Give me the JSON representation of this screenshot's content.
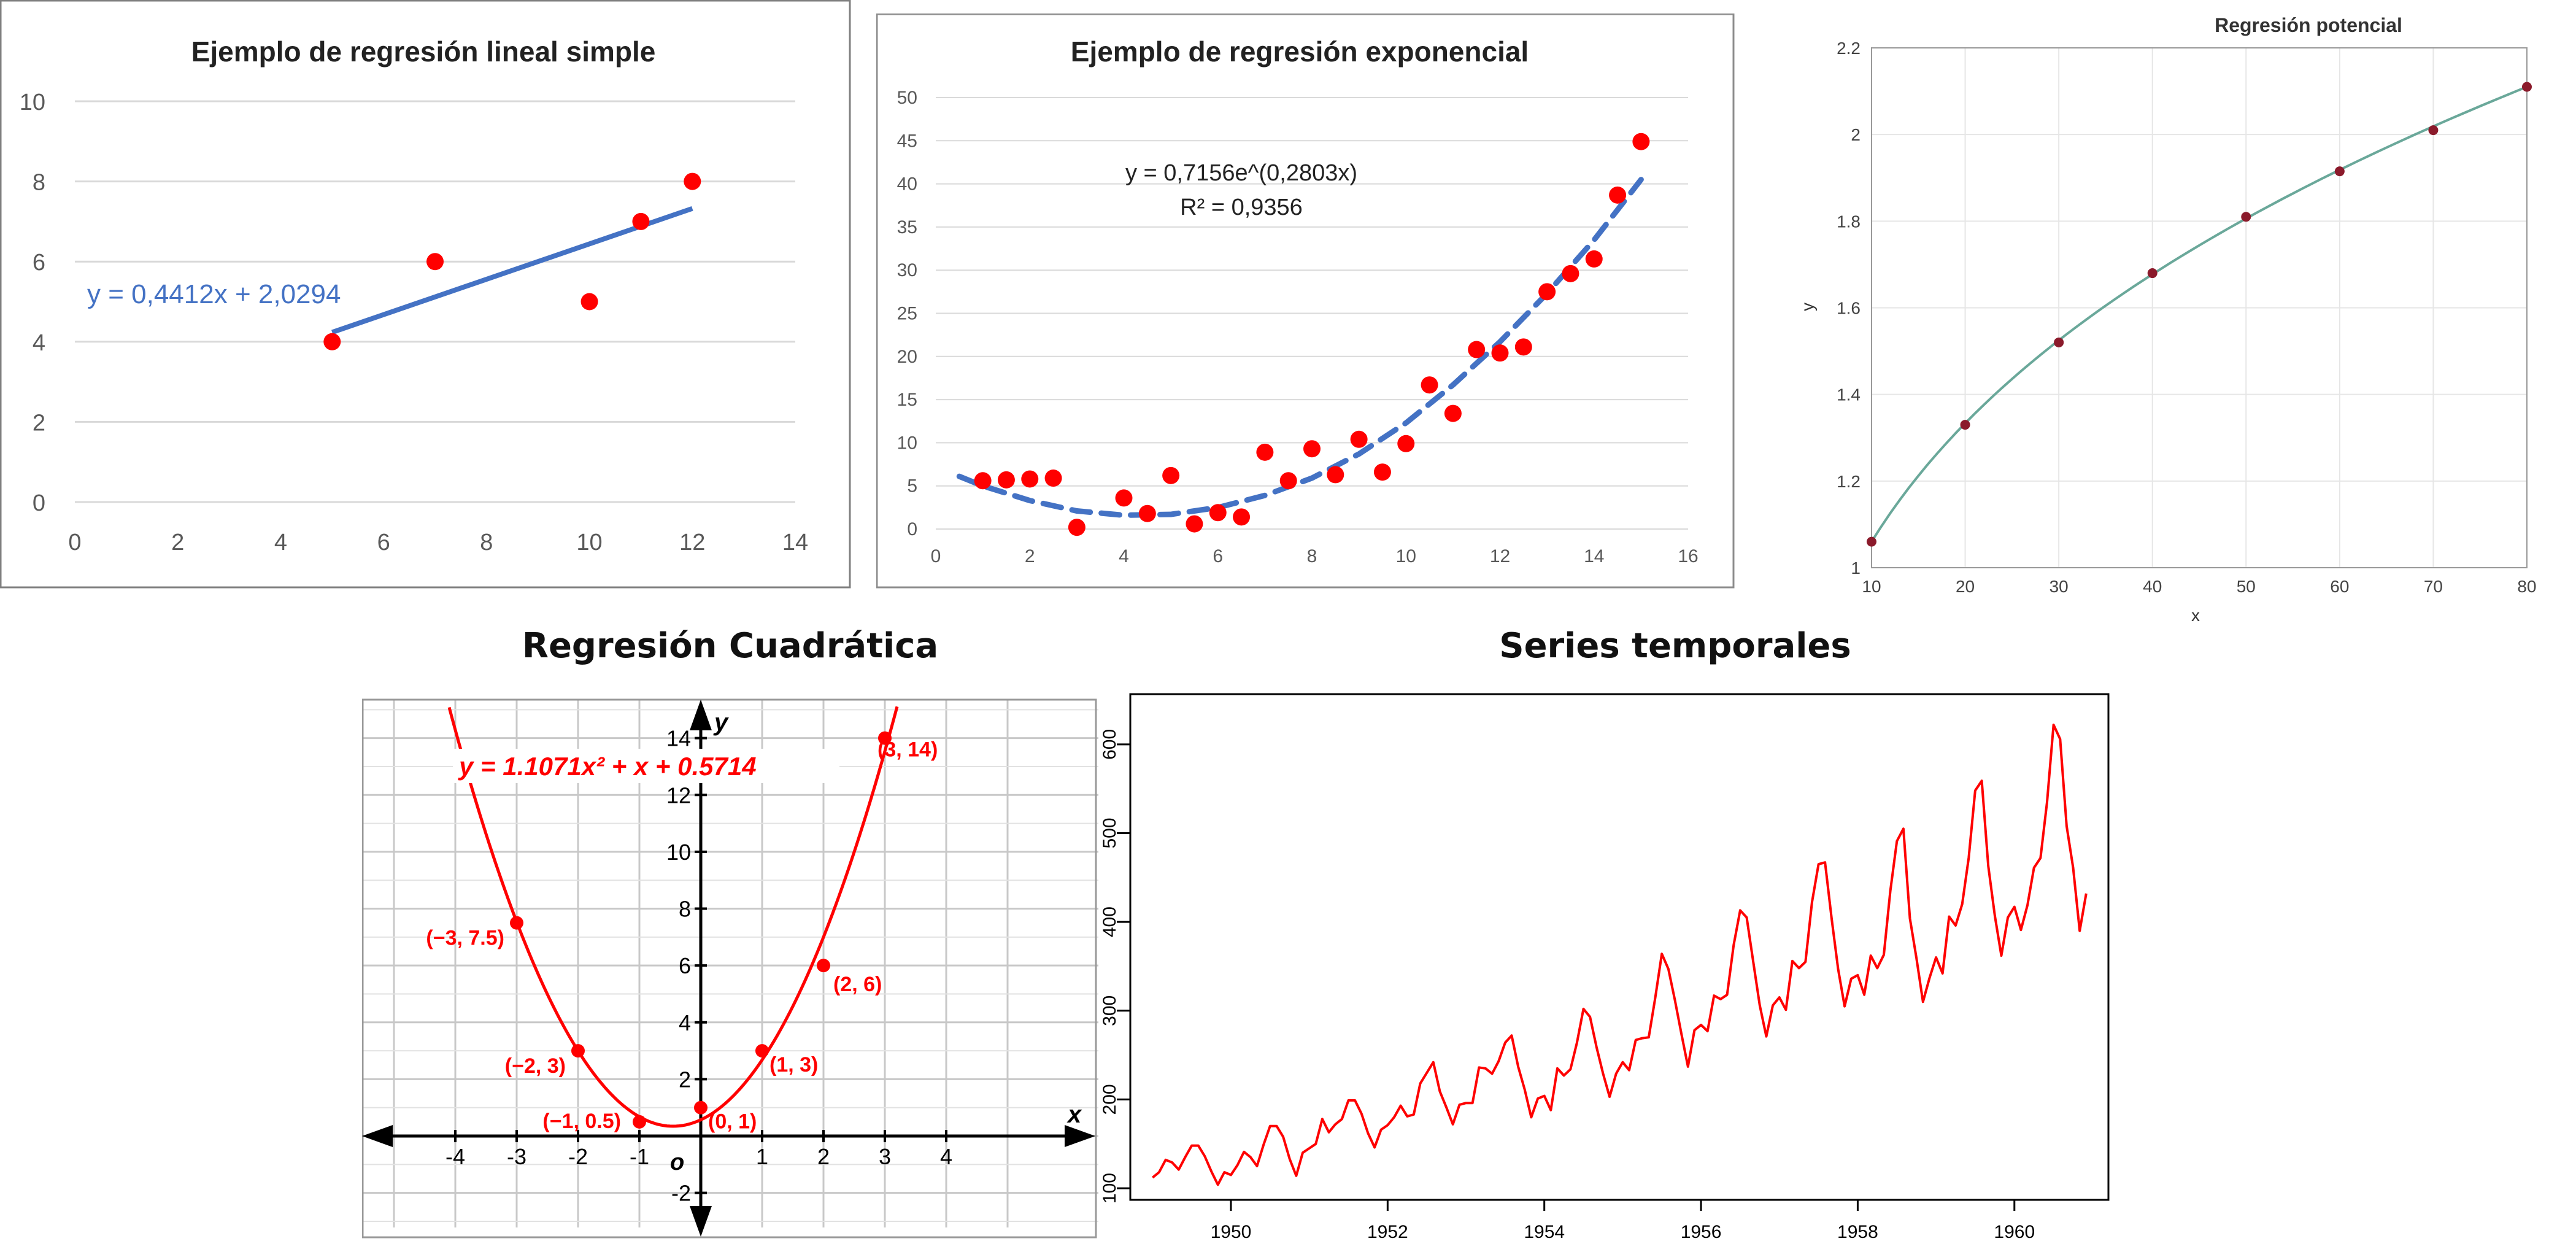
{
  "chart_data": [
    {
      "id": "lineal",
      "type": "scatter",
      "title": "Ejemplo de regresión lineal simple",
      "xlim": [
        0,
        14
      ],
      "ylim": [
        0,
        10
      ],
      "x_ticks": [
        0,
        2,
        4,
        6,
        8,
        10,
        12,
        14
      ],
      "y_ticks": [
        0,
        2,
        4,
        6,
        8,
        10
      ],
      "grid": true,
      "points": [
        [
          5,
          4
        ],
        [
          7,
          6
        ],
        [
          10,
          5
        ],
        [
          11,
          7
        ],
        [
          12,
          8
        ]
      ],
      "fit": {
        "kind": "linear",
        "a": 0.4412,
        "b": 2.0294,
        "x_range": [
          5,
          12
        ],
        "label": "y = 0,4412x + 2,0294"
      },
      "colors": {
        "points": "#ff0000",
        "fit": "#4472c4"
      }
    },
    {
      "id": "exponencial",
      "type": "scatter",
      "title": "Ejemplo de regresión exponencial",
      "xlim": [
        0,
        16
      ],
      "ylim": [
        0,
        50
      ],
      "x_ticks": [
        0,
        2,
        4,
        6,
        8,
        10,
        12,
        14,
        16
      ],
      "y_ticks": [
        0,
        5,
        10,
        15,
        20,
        25,
        30,
        35,
        40,
        45,
        50
      ],
      "grid": true,
      "points": [
        [
          1,
          5.6
        ],
        [
          1.5,
          5.7
        ],
        [
          2,
          5.8
        ],
        [
          2.5,
          5.9
        ],
        [
          3,
          0.2
        ],
        [
          4,
          3.6
        ],
        [
          4.5,
          1.8
        ],
        [
          5,
          6.2
        ],
        [
          5.5,
          0.6
        ],
        [
          6,
          1.9
        ],
        [
          6.5,
          1.4
        ],
        [
          7,
          8.9
        ],
        [
          7.5,
          5.6
        ],
        [
          8,
          9.3
        ],
        [
          8.5,
          6.3
        ],
        [
          9,
          10.4
        ],
        [
          9.5,
          6.6
        ],
        [
          10,
          9.9
        ],
        [
          10.5,
          16.7
        ],
        [
          11,
          13.4
        ],
        [
          11.5,
          20.8
        ],
        [
          12,
          20.4
        ],
        [
          12.5,
          21.1
        ],
        [
          13,
          27.5
        ],
        [
          13.5,
          29.6
        ],
        [
          14,
          31.3
        ],
        [
          14.5,
          38.7
        ],
        [
          15,
          44.9
        ]
      ],
      "fit_curve": [
        [
          0.5,
          6.1
        ],
        [
          1,
          5.0
        ],
        [
          2,
          3.3
        ],
        [
          3,
          2.1
        ],
        [
          4,
          1.6
        ],
        [
          5,
          1.7
        ],
        [
          6,
          2.5
        ],
        [
          7,
          3.9
        ],
        [
          8,
          5.9
        ],
        [
          9,
          8.7
        ],
        [
          10,
          12.3
        ],
        [
          11,
          16.7
        ],
        [
          12,
          21.7
        ],
        [
          13,
          27.3
        ],
        [
          14,
          33.5
        ],
        [
          15,
          40.5
        ]
      ],
      "equation": "y = 0,7156e^(0,2803x)",
      "r2": "R² = 0,9356",
      "colors": {
        "points": "#ff0000",
        "fit": "#4472c4"
      }
    },
    {
      "id": "potencial",
      "type": "line",
      "title": "Regresión potencial",
      "xlabel": "x",
      "ylabel": "y",
      "xlim": [
        10,
        80
      ],
      "ylim": [
        1,
        2.2
      ],
      "x_ticks": [
        10,
        20,
        30,
        40,
        50,
        60,
        70,
        80
      ],
      "y_ticks": [
        1,
        1.2,
        1.4,
        1.6,
        1.8,
        2,
        2.2
      ],
      "grid": true,
      "points": [
        [
          10,
          1.06
        ],
        [
          20,
          1.33
        ],
        [
          30,
          1.52
        ],
        [
          40,
          1.68
        ],
        [
          50,
          1.81
        ],
        [
          60,
          1.915
        ],
        [
          70,
          2.01
        ],
        [
          80,
          2.11
        ]
      ],
      "colors": {
        "points": "#8b1a2b",
        "fit": "#6aa89a"
      }
    },
    {
      "id": "cuadratica",
      "type": "line",
      "title": "Regresión Cuadrática",
      "xlabel": "x",
      "ylabel": "y",
      "origin_label": "o",
      "xlim": [
        -5,
        5
      ],
      "ylim": [
        -3,
        16
      ],
      "x_ticks": [
        -4,
        -3,
        -2,
        -1,
        1,
        2,
        3,
        4
      ],
      "y_ticks": [
        -2,
        2,
        4,
        6,
        8,
        10,
        12,
        14
      ],
      "grid": true,
      "fit": {
        "kind": "quadratic",
        "a": 1.1071,
        "b": 1,
        "c": 0.5714
      },
      "equation": "y = 1.1071x² + x + 0.5714",
      "points": [
        {
          "x": -3,
          "y": 7.5,
          "label": "(−3, 7.5)"
        },
        {
          "x": -2,
          "y": 3,
          "label": "(−2, 3)"
        },
        {
          "x": -1,
          "y": 0.5,
          "label": "(−1, 0.5)"
        },
        {
          "x": 0,
          "y": 1,
          "label": "(0, 1)"
        },
        {
          "x": 1,
          "y": 3,
          "label": "(1, 3)"
        },
        {
          "x": 2,
          "y": 6,
          "label": "(2, 6)"
        },
        {
          "x": 3,
          "y": 14,
          "label": "(3, 14)"
        }
      ],
      "colors": {
        "curve": "#ff0000",
        "axes": "#000000"
      }
    },
    {
      "id": "temporales",
      "type": "line",
      "title": "Series temporales",
      "x_start": 1949,
      "x_step_months": 1,
      "xlim": [
        1948.7,
        1961.2
      ],
      "ylim": [
        80,
        640
      ],
      "x_ticks": [
        1950,
        1952,
        1954,
        1956,
        1958,
        1960
      ],
      "y_ticks": [
        100,
        200,
        300,
        400,
        500,
        600
      ],
      "grid": false,
      "values": [
        112,
        118,
        132,
        129,
        121,
        135,
        148,
        148,
        136,
        119,
        104,
        118,
        115,
        126,
        141,
        135,
        125,
        149,
        170,
        170,
        158,
        133,
        114,
        140,
        145,
        150,
        178,
        163,
        172,
        178,
        199,
        199,
        184,
        162,
        146,
        166,
        171,
        180,
        193,
        181,
        183,
        218,
        230,
        242,
        209,
        191,
        172,
        194,
        196,
        196,
        236,
        235,
        229,
        243,
        264,
        272,
        237,
        211,
        180,
        201,
        204,
        188,
        235,
        227,
        234,
        264,
        302,
        293,
        259,
        229,
        203,
        229,
        242,
        233,
        267,
        269,
        270,
        315,
        364,
        347,
        312,
        274,
        237,
        278,
        284,
        277,
        317,
        313,
        318,
        374,
        413,
        405,
        355,
        306,
        271,
        306,
        315,
        301,
        356,
        348,
        355,
        422,
        465,
        467,
        404,
        347,
        305,
        336,
        340,
        318,
        362,
        348,
        363,
        435,
        491,
        505,
        404,
        359,
        310,
        337,
        360,
        342,
        406,
        396,
        420,
        472,
        548,
        559,
        463,
        407,
        362,
        405,
        417,
        391,
        419,
        461,
        472,
        535,
        622,
        606,
        508,
        461,
        390,
        432
      ],
      "colors": {
        "line": "#ff0000"
      }
    }
  ]
}
